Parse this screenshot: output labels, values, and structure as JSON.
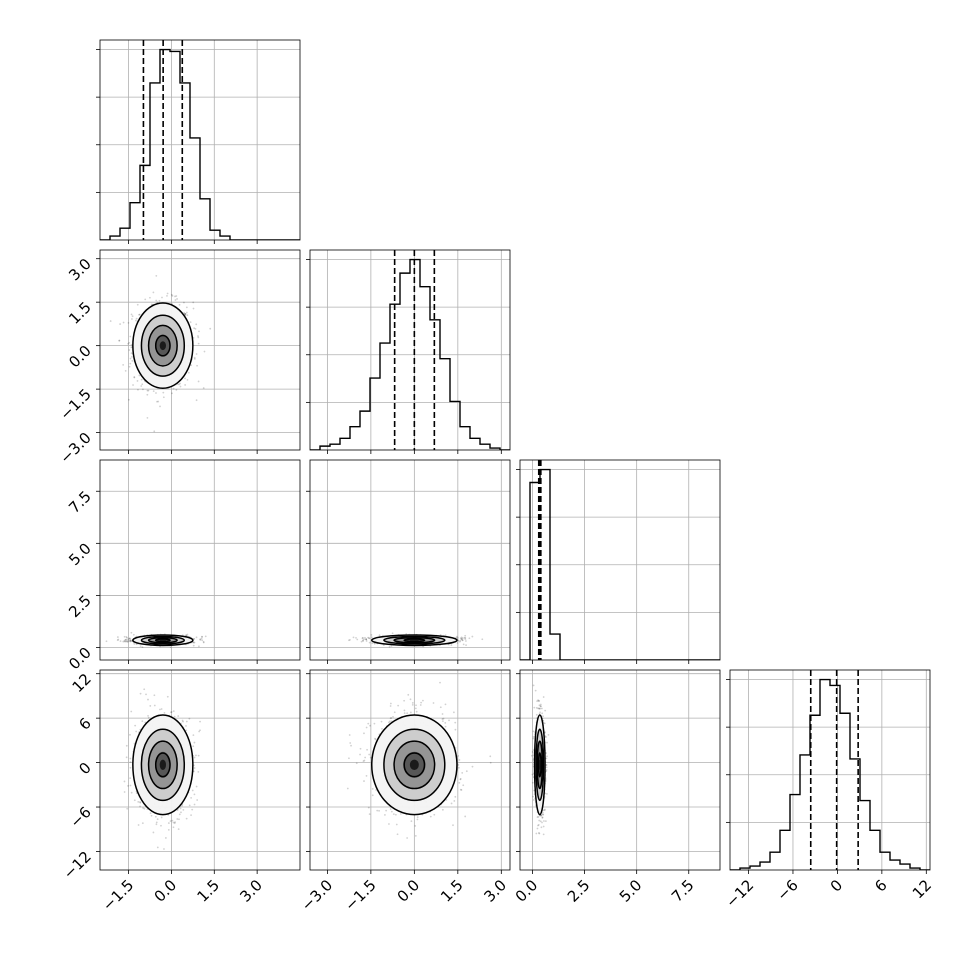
{
  "chart_data": {
    "type": "corner",
    "description_free": true,
    "n_params": 4,
    "grid": true,
    "colors": {
      "line": "#000000",
      "grid": "#b0b0b0",
      "points": "#000000",
      "density": "#000000"
    },
    "params": [
      {
        "range": [
          -2.5,
          4.5
        ],
        "ticks": [
          -1.5,
          0.0,
          1.5,
          3.0
        ],
        "tick_labels": [
          "−1.5",
          "0.0",
          "1.5",
          "3.0"
        ],
        "hist_x0": -2.5,
        "hist_dx": 0.35,
        "hist_counts": [
          0,
          0.02,
          0.06,
          0.19,
          0.38,
          0.8,
          0.97,
          0.96,
          0.8,
          0.52,
          0.21,
          0.05,
          0.02,
          0,
          0,
          0,
          0,
          0,
          0,
          0
        ],
        "quantiles": [
          -0.98,
          -0.29,
          0.38
        ],
        "mean": -0.3,
        "sd": 0.5
      },
      {
        "range": [
          -3.6,
          3.3
        ],
        "ticks": [
          -3.0,
          -1.5,
          0.0,
          1.5,
          3.0
        ],
        "tick_labels": [
          "−3.0",
          "−1.5",
          "0.0",
          "1.5",
          "3.0"
        ],
        "hist_x0": -3.6,
        "hist_dx": 0.345,
        "hist_counts": [
          0,
          0.02,
          0.03,
          0.06,
          0.12,
          0.2,
          0.37,
          0.55,
          0.75,
          0.91,
          0.98,
          0.84,
          0.67,
          0.47,
          0.25,
          0.12,
          0.06,
          0.03,
          0.01,
          0
        ],
        "quantiles": [
          -0.68,
          0.0,
          0.69
        ],
        "mean": 0.0,
        "sd": 0.7,
        "yticks_left": [
          -3.0,
          -1.5,
          0.0,
          1.5,
          3.0
        ],
        "ytick_labels": [
          "−3.0",
          "−1.5",
          "0.0",
          "1.5",
          "3.0"
        ]
      },
      {
        "range": [
          -0.6,
          9.0
        ],
        "ticks": [
          0.0,
          2.5,
          5.0,
          7.5
        ],
        "tick_labels": [
          "0.0",
          "2.5",
          "5.0",
          "7.5"
        ],
        "hist_x0": -0.6,
        "hist_dx": 0.48,
        "hist_counts": [
          0,
          0.82,
          0.88,
          0.12,
          0,
          0,
          0,
          0,
          0,
          0,
          0,
          0,
          0,
          0,
          0,
          0,
          0,
          0,
          0,
          0
        ],
        "quantiles": [
          0.3,
          0.35,
          0.4
        ],
        "mean": 0.35,
        "sd": 0.12
      },
      {
        "range": [
          -14.5,
          12.5
        ],
        "ticks": [
          -12,
          -6,
          0,
          6,
          12
        ],
        "tick_labels": [
          "−12",
          "−6",
          "0",
          "6",
          "12"
        ],
        "hist_x0": -14.5,
        "hist_dx": 1.35,
        "hist_counts": [
          0,
          0.01,
          0.02,
          0.04,
          0.09,
          0.2,
          0.38,
          0.58,
          0.78,
          0.96,
          0.93,
          0.79,
          0.56,
          0.35,
          0.2,
          0.09,
          0.05,
          0.03,
          0.01,
          0
        ],
        "quantiles": [
          -3.6,
          -0.1,
          2.8
        ],
        "mean": -0.3,
        "sd": 3.2
      }
    ]
  }
}
